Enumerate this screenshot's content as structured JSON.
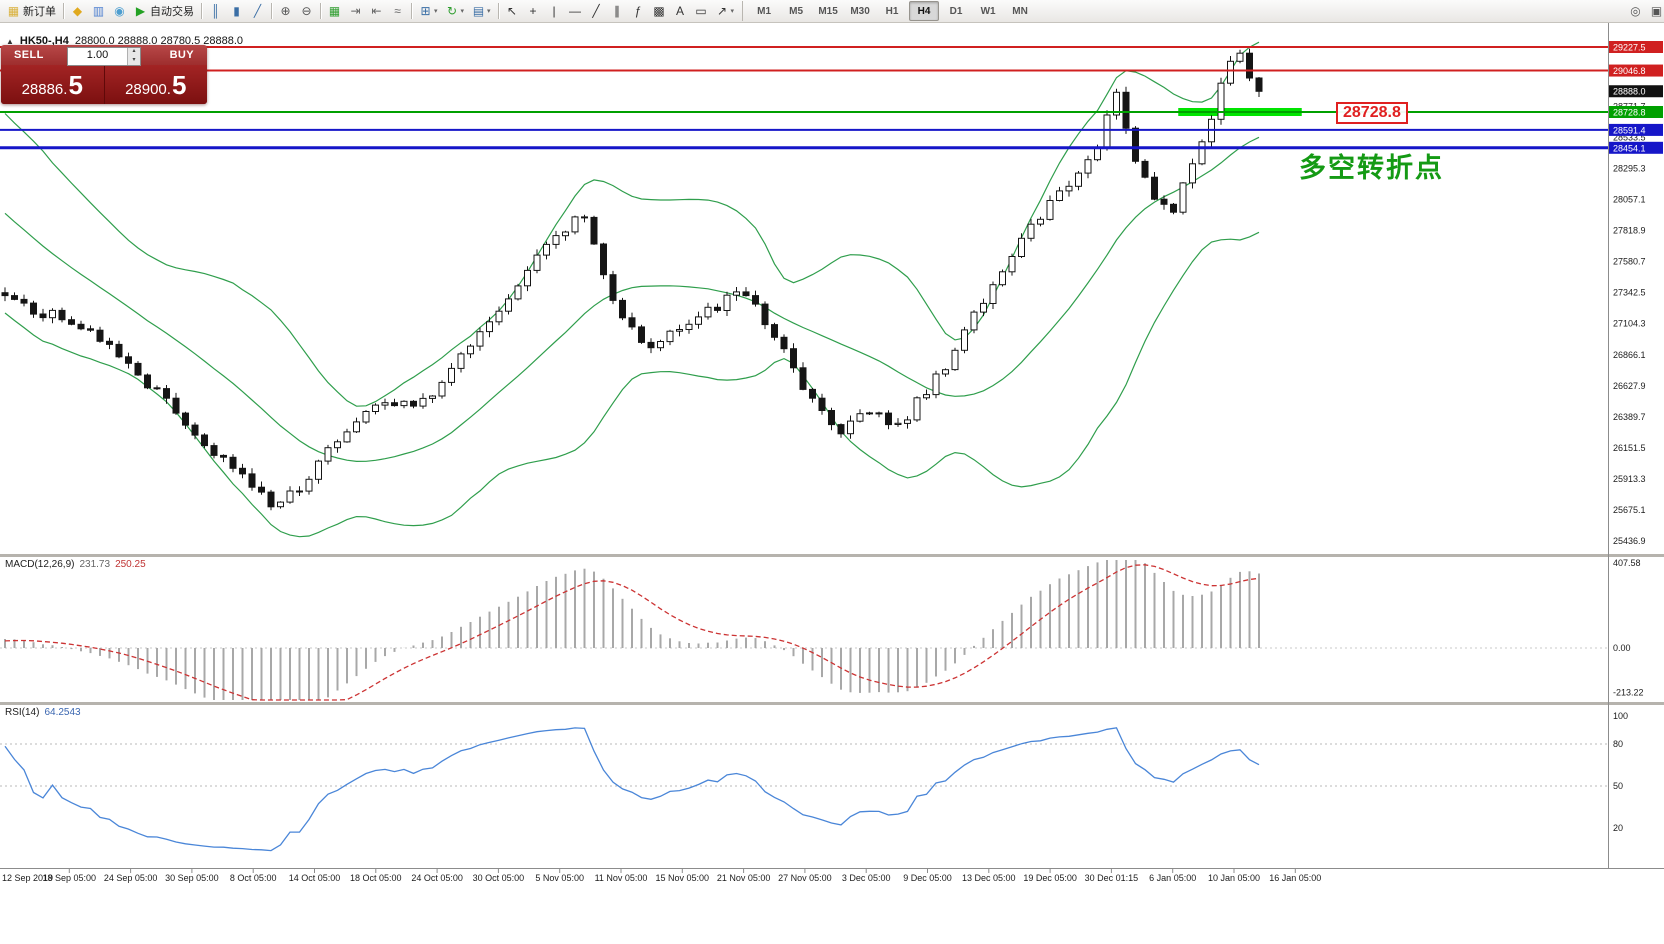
{
  "chart_header": {
    "collapse_icon": "▲",
    "symbol": "HK50-,H4",
    "ohlc": "28800.0 28888.0 28780.5 28888.0"
  },
  "trade_panel": {
    "sell_label": "SELL",
    "buy_label": "BUY",
    "volume": "1.00",
    "spin_up": "▴",
    "spin_down": "▾",
    "sell_price": "28886.",
    "sell_price_big": "5",
    "buy_price": "28900.",
    "buy_price_big": "5"
  },
  "annotation": {
    "text": "多空转折点",
    "color": "#149a14"
  },
  "price_callout": {
    "text": "28728.8",
    "color": "#e02020"
  },
  "indicators": {
    "macd_label": "MACD(12,26,9)",
    "macd_main_value": "231.73",
    "macd_signal_value": "250.25",
    "rsi_label": "RSI(14)",
    "rsi_value": "64.2543"
  },
  "toolbar": {
    "dropdown_glyph": "▾",
    "groups": [
      {
        "name": "order-group",
        "items": [
          {
            "name": "new-order-button",
            "glyph": "▦",
            "glyph_color": "#d9b13c",
            "label": "新订单"
          }
        ]
      },
      {
        "name": "apps-group",
        "items": [
          {
            "name": "metaeditor-button",
            "glyph": "◆",
            "glyph_color": "#e0a91e"
          },
          {
            "name": "market-button",
            "glyph": "▥",
            "glyph_color": "#4d7fd0"
          },
          {
            "name": "community-button",
            "glyph": "◉",
            "glyph_color": "#4d9ed0"
          },
          {
            "name": "autotrading-button",
            "glyph": "▶",
            "glyph_color": "#23a123",
            "label": "自动交易"
          }
        ]
      },
      {
        "name": "chart-type-group",
        "items": [
          {
            "name": "bar-chart-button",
            "glyph": "║",
            "glyph_color": "#3a6ea5"
          },
          {
            "name": "candlestick-chart-button",
            "glyph": "▮",
            "glyph_color": "#3a6ea5"
          },
          {
            "name": "line-chart-button",
            "glyph": "╱",
            "glyph_color": "#3a6ea5"
          }
        ]
      },
      {
        "name": "zoom-group",
        "items": [
          {
            "name": "zoom-in-button",
            "glyph": "⊕",
            "glyph_color": "#555555"
          },
          {
            "name": "zoom-out-button",
            "glyph": "⊖",
            "glyph_color": "#555555"
          }
        ]
      },
      {
        "name": "window-group",
        "items": [
          {
            "name": "tile-windows-button",
            "glyph": "▦",
            "glyph_color": "#2f9e2f"
          },
          {
            "name": "auto-scroll-button",
            "glyph": "⇥",
            "glyph_color": "#666666"
          },
          {
            "name": "chart-shift-button",
            "glyph": "⇤",
            "glyph_color": "#666666"
          },
          {
            "name": "indicators-button",
            "glyph": "≈",
            "glyph_color": "#666666"
          }
        ]
      },
      {
        "name": "chart-mgmt-group",
        "items": [
          {
            "name": "new-chart-button",
            "glyph": "⊞",
            "glyph_color": "#3a6ea5",
            "dropdown": true
          },
          {
            "name": "profiles-button",
            "glyph": "↻",
            "glyph_color": "#2f9e2f",
            "dropdown": true
          },
          {
            "name": "templates-button",
            "glyph": "▤",
            "glyph_color": "#3a6ea5",
            "dropdown": true
          }
        ]
      },
      {
        "name": "drawing-tools-group",
        "items": [
          {
            "name": "cursor-button",
            "glyph": "↖",
            "glyph_color": "#333333"
          },
          {
            "name": "crosshair-button",
            "glyph": "+",
            "glyph_color": "#333333"
          },
          {
            "name": "vertical-line-button",
            "glyph": "|",
            "glyph_color": "#333333"
          },
          {
            "name": "horizontal-line-button",
            "glyph": "—",
            "glyph_color": "#333333"
          },
          {
            "name": "trendline-button",
            "glyph": "╱",
            "glyph_color": "#333333"
          },
          {
            "name": "channel-button",
            "glyph": "∥",
            "glyph_color": "#333333"
          },
          {
            "name": "fibonacci-button",
            "glyph": "ƒ",
            "glyph_color": "#333333"
          },
          {
            "name": "shapes-button",
            "glyph": "▩",
            "glyph_color": "#333333"
          },
          {
            "name": "text-button",
            "glyph": "A",
            "glyph_color": "#333333"
          },
          {
            "name": "label-button",
            "glyph": "▭",
            "glyph_color": "#333333"
          },
          {
            "name": "arrows-button",
            "glyph": "↗",
            "glyph_color": "#333333",
            "dropdown": true
          }
        ]
      }
    ],
    "timeframes": {
      "items": [
        "M1",
        "M5",
        "M15",
        "M30",
        "H1",
        "H4",
        "D1",
        "W1",
        "MN"
      ],
      "active": "H4"
    },
    "right_items": [
      {
        "name": "search-button",
        "glyph": "◎",
        "glyph_color": "#555555"
      },
      {
        "name": "fullscreen-button",
        "glyph": "▣",
        "glyph_color": "#555555"
      }
    ]
  },
  "axes": {
    "price_grid_labels": [
      "28771.7",
      "28533.5",
      "28295.3",
      "28057.1",
      "27818.9",
      "27580.7",
      "27342.5",
      "27104.3",
      "26866.1",
      "26627.9",
      "26389.7",
      "26151.5",
      "25913.3",
      "25675.1",
      "25436.9"
    ],
    "macd_scale_labels": [
      "407.58",
      "0.00",
      "-213.22"
    ],
    "rsi_scale_labels": [
      "100",
      "80",
      "50",
      "20"
    ],
    "time_labels": [
      "12 Sep 2019",
      "18 Sep 05:00",
      "24 Sep 05:00",
      "30 Sep 05:00",
      "8 Oct 05:00",
      "14 Oct 05:00",
      "18 Oct 05:00",
      "24 Oct 05:00",
      "30 Oct 05:00",
      "5 Nov 05:00",
      "11 Nov 05:00",
      "15 Nov 05:00",
      "21 Nov 05:00",
      "27 Nov 05:00",
      "3 Dec 05:00",
      "9 Dec 05:00",
      "13 Dec 05:00",
      "19 Dec 05:00",
      "30 Dec 01:15",
      "6 Jan 05:00",
      "10 Jan 05:00",
      "16 Jan 05:00"
    ]
  },
  "chart_data": {
    "type": "candlestick",
    "symbol": "HK50",
    "timeframe": "H4",
    "ohlc_current": {
      "open": 28800.0,
      "high": 28888.0,
      "low": 28780.5,
      "close": 28888.0
    },
    "bid": 28886.5,
    "ask": 28900.5,
    "price_range": [
      25340,
      29420
    ],
    "candle_count": 133,
    "noise": 55,
    "wick": 38,
    "pre_band_price": 28650,
    "pre_osc_price": 27120,
    "price_anchors": [
      [
        0,
        27320
      ],
      [
        7,
        27100
      ],
      [
        13,
        26800
      ],
      [
        20,
        26250
      ],
      [
        26,
        25850
      ],
      [
        28,
        25700
      ],
      [
        31,
        25820
      ],
      [
        33,
        26050
      ],
      [
        39,
        26480
      ],
      [
        45,
        26550
      ],
      [
        52,
        27200
      ],
      [
        58,
        27780
      ],
      [
        61,
        27920
      ],
      [
        63,
        27480
      ],
      [
        65,
        27150
      ],
      [
        68,
        26920
      ],
      [
        71,
        27060
      ],
      [
        74,
        27230
      ],
      [
        78,
        27320
      ],
      [
        81,
        27000
      ],
      [
        84,
        26600
      ],
      [
        88,
        26260
      ],
      [
        91,
        26420
      ],
      [
        94,
        26340
      ],
      [
        97,
        26560
      ],
      [
        100,
        26900
      ],
      [
        103,
        27260
      ],
      [
        106,
        27620
      ],
      [
        110,
        28050
      ],
      [
        113,
        28260
      ],
      [
        115,
        28450
      ],
      [
        117,
        28880
      ],
      [
        119,
        28350
      ],
      [
        121,
        28060
      ],
      [
        123,
        27960
      ],
      [
        126,
        28500
      ],
      [
        128,
        28950
      ],
      [
        130,
        29180
      ],
      [
        131,
        28990
      ],
      [
        132,
        28888
      ]
    ],
    "horizontal_lines": [
      {
        "name": "resistance-1",
        "price": 29227.5,
        "label": "29227.5",
        "color": "#d02020",
        "width": 2,
        "label_bg": "#d02020"
      },
      {
        "name": "resistance-2",
        "price": 29046.8,
        "label": "29046.8",
        "color": "#d02020",
        "width": 2,
        "label_bg": "#d02020"
      },
      {
        "name": "last-price",
        "price": 28888.0,
        "label": "28888.0",
        "color": "#111111",
        "width": 0,
        "label_bg": "#111111"
      },
      {
        "name": "pivot-green",
        "price": 28728.8,
        "label": "28728.8",
        "color": "#00a000",
        "width": 2,
        "label_bg": "#00a000"
      },
      {
        "name": "support-1",
        "price": 28591.4,
        "label": "28591.4",
        "color": "#1616c8",
        "width": 2,
        "label_bg": "#1616c8"
      },
      {
        "name": "support-2",
        "price": 28454.1,
        "label": "28454.1",
        "color": "#1616c8",
        "width": 3,
        "label_bg": "#1616c8"
      }
    ],
    "highlight_zone": {
      "price": 28728.8,
      "start_index": 123.5,
      "end_index": 136.5,
      "color": "#00e400",
      "thickness": 8
    },
    "indicators": {
      "bollinger": {
        "period": 20,
        "deviation": 2,
        "color": "#2f9e4c"
      },
      "macd": {
        "fast": 12,
        "slow": 26,
        "signal": 9,
        "histogram_color": "#a8a8a8",
        "signal_color": "#cc3333",
        "range": [
          -213.22,
          407.58
        ],
        "current_main": 231.73,
        "current_signal": 250.25
      },
      "rsi": {
        "period": 14,
        "color": "#4a86d8",
        "levels": [
          80,
          50
        ],
        "current": 64.2543,
        "range": [
          0,
          100
        ]
      }
    }
  }
}
